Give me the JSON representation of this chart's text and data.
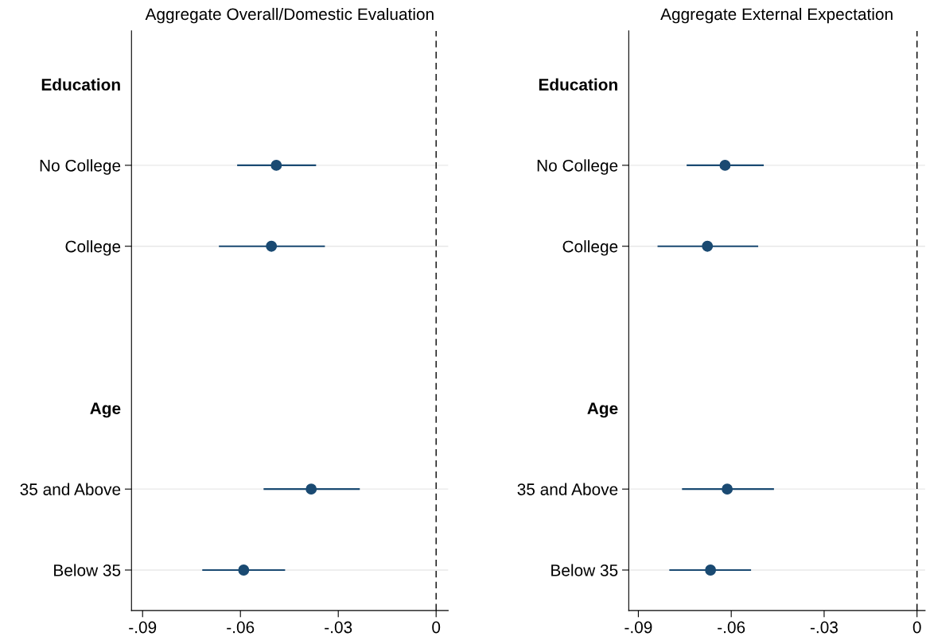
{
  "chart_data": [
    {
      "type": "scatter",
      "title": "Aggregate Overall/Domestic Evaluation",
      "orientation": "horizontal",
      "categories": [
        "Education",
        "No College",
        "College",
        null,
        "Age",
        "35 and Above",
        "Below 35"
      ],
      "color": "#1a4a72",
      "values": [
        null,
        -0.049,
        -0.0505,
        null,
        null,
        -0.0383,
        -0.059
      ],
      "errors": [
        null,
        [
          -0.061,
          -0.0368
        ],
        [
          -0.0666,
          -0.0341
        ],
        null,
        null,
        [
          -0.0529,
          -0.0234
        ],
        [
          -0.0717,
          -0.0463
        ]
      ],
      "xlim": [
        -0.0934,
        0.0037
      ],
      "xticks": [
        {
          "value": -0.09,
          "label": "-.09"
        },
        {
          "value": -0.06,
          "label": "-.06"
        },
        {
          "value": -0.03,
          "label": "-.03"
        },
        0
      ],
      "grid": "y",
      "marker": "circle",
      "ref_lines": [
        {
          "axis": "x",
          "value": 0,
          "line_style": "dashed",
          "color": "#000000"
        }
      ]
    },
    {
      "type": "scatter",
      "title": "Aggregate External Expectation",
      "orientation": "horizontal",
      "categories": [
        "Education",
        "No College",
        "College",
        null,
        "Age",
        "35 and Above",
        "Below 35"
      ],
      "color": "#1a4a72",
      "values": [
        null,
        -0.062,
        -0.0677,
        null,
        null,
        -0.0613,
        -0.0667
      ],
      "errors": [
        null,
        [
          -0.0744,
          -0.0495
        ],
        [
          -0.0838,
          -0.0513
        ],
        null,
        null,
        [
          -0.0759,
          -0.0462
        ],
        [
          -0.08,
          -0.0536
        ]
      ],
      "xlim": [
        -0.0931,
        0.0026
      ],
      "xticks": [
        {
          "value": -0.09,
          "label": "-.09"
        },
        {
          "value": -0.06,
          "label": "-.06"
        },
        {
          "value": -0.03,
          "label": "-.03"
        },
        0
      ],
      "grid": "y",
      "marker": "circle",
      "ref_lines": [
        {
          "axis": "x",
          "value": 0,
          "line_style": "dashed",
          "color": "#000000"
        }
      ]
    }
  ]
}
